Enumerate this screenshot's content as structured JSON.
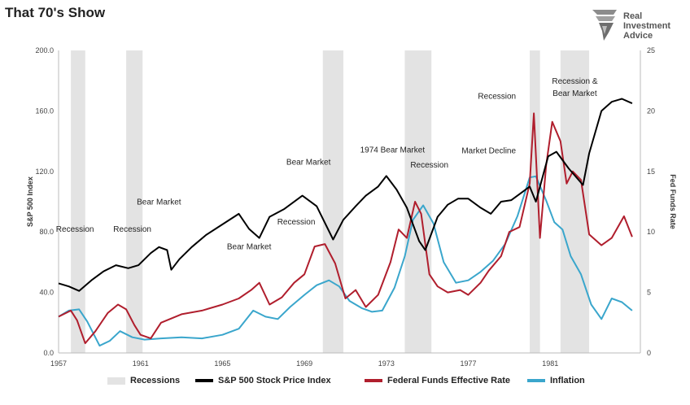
{
  "header": {
    "title": "That 70's Show"
  },
  "logo": {
    "lines": [
      "Real",
      "Investment",
      "Advice"
    ]
  },
  "colors": {
    "recession": "#e3e3e3",
    "sp500": "#000000",
    "fedfunds": "#b01e2d",
    "inflation": "#3aa6cc"
  },
  "chart_data": {
    "type": "line",
    "title": "That 70's Show",
    "xlim": [
      1957,
      1985.4
    ],
    "x_ticks": [
      "1957",
      "1961",
      "1965",
      "1969",
      "1973",
      "1977",
      "1981"
    ],
    "x_tick_values": [
      1957,
      1961,
      1965,
      1969,
      1973,
      1977,
      1981
    ],
    "ylabel_left": "S&P 500 Index",
    "ylim_left": [
      0,
      200
    ],
    "y_ticks_left": [
      "0.0",
      "40.0",
      "80.0",
      "120.0",
      "160.0",
      "200.0"
    ],
    "ylabel_right": "Fed Funds Rate",
    "ylim_right": [
      0,
      25
    ],
    "y_ticks_right": [
      "0",
      "5",
      "10",
      "15",
      "20",
      "25"
    ],
    "recessions": [
      [
        1957.6,
        1958.3
      ],
      [
        1960.3,
        1961.1
      ],
      [
        1969.9,
        1970.9
      ],
      [
        1973.9,
        1975.2
      ],
      [
        1980.0,
        1980.5
      ],
      [
        1981.5,
        1982.9
      ]
    ],
    "series": [
      {
        "name": "S&P 500 Stock Price Index",
        "axis": "left",
        "x": [
          1957.0,
          1957.5,
          1958.0,
          1958.6,
          1959.2,
          1959.8,
          1960.4,
          1960.9,
          1961.5,
          1961.9,
          1962.3,
          1962.5,
          1962.9,
          1963.5,
          1964.2,
          1965.0,
          1965.8,
          1966.3,
          1966.8,
          1967.3,
          1968.0,
          1968.9,
          1969.6,
          1970.4,
          1970.9,
          1971.5,
          1972.0,
          1972.6,
          1973.0,
          1973.5,
          1974.0,
          1974.6,
          1974.9,
          1975.5,
          1976.0,
          1976.5,
          1977.0,
          1977.6,
          1978.1,
          1978.6,
          1979.1,
          1979.6,
          1980.0,
          1980.3,
          1980.9,
          1981.3,
          1981.9,
          1982.6,
          1982.9,
          1983.5,
          1984.0,
          1984.5,
          1985.0
        ],
        "y": [
          46,
          44,
          41,
          48,
          54,
          58,
          56,
          58,
          66,
          70,
          68,
          55,
          62,
          70,
          78,
          85,
          92,
          82,
          76,
          90,
          95,
          104,
          97,
          75,
          88,
          97,
          104,
          110,
          117,
          108,
          96,
          74,
          68,
          90,
          98,
          102,
          102,
          96,
          92,
          100,
          101,
          106,
          110,
          100,
          130,
          133,
          122,
          111,
          132,
          160,
          166,
          168,
          165
        ]
      },
      {
        "name": "Federal Funds Effective Rate",
        "axis": "right",
        "x": [
          1957.0,
          1957.6,
          1957.9,
          1958.3,
          1958.8,
          1959.4,
          1959.9,
          1960.3,
          1960.7,
          1961.0,
          1961.5,
          1962.0,
          1963.0,
          1964.0,
          1965.0,
          1965.8,
          1966.4,
          1966.8,
          1967.3,
          1967.9,
          1968.5,
          1969.0,
          1969.5,
          1970.0,
          1970.5,
          1971.0,
          1971.5,
          1972.0,
          1972.6,
          1973.2,
          1973.6,
          1974.0,
          1974.4,
          1974.7,
          1975.1,
          1975.5,
          1976.0,
          1976.6,
          1977.0,
          1977.6,
          1978.0,
          1978.6,
          1979.0,
          1979.5,
          1980.0,
          1980.2,
          1980.5,
          1980.8,
          1981.1,
          1981.5,
          1981.8,
          1982.1,
          1982.5,
          1982.9,
          1983.5,
          1984.0,
          1984.6,
          1985.0
        ],
        "y": [
          3.0,
          3.5,
          2.7,
          0.8,
          1.8,
          3.3,
          4.0,
          3.6,
          2.3,
          1.5,
          1.2,
          2.5,
          3.2,
          3.5,
          4.0,
          4.5,
          5.2,
          5.8,
          4.0,
          4.6,
          5.8,
          6.5,
          8.8,
          9.0,
          7.4,
          4.5,
          5.2,
          3.8,
          4.8,
          7.5,
          10.2,
          9.5,
          12.5,
          11.5,
          6.5,
          5.5,
          5.0,
          5.2,
          4.8,
          5.8,
          6.8,
          8.0,
          10.0,
          10.4,
          14.0,
          19.8,
          9.5,
          15.5,
          19.1,
          17.5,
          14.0,
          15.0,
          14.3,
          9.8,
          8.9,
          9.5,
          11.3,
          9.6
        ]
      },
      {
        "name": "Inflation",
        "axis": "right",
        "x": [
          1957.0,
          1957.5,
          1958.0,
          1958.4,
          1959.0,
          1959.5,
          1960.0,
          1960.6,
          1961.2,
          1962.0,
          1963.0,
          1964.0,
          1965.0,
          1965.8,
          1966.5,
          1967.1,
          1967.7,
          1968.3,
          1969.0,
          1969.6,
          1970.2,
          1970.7,
          1971.2,
          1971.8,
          1972.3,
          1972.8,
          1973.4,
          1973.9,
          1974.3,
          1974.8,
          1975.3,
          1975.8,
          1976.4,
          1977.0,
          1977.6,
          1978.2,
          1978.8,
          1979.4,
          1980.0,
          1980.3,
          1980.8,
          1981.2,
          1981.6,
          1982.0,
          1982.5,
          1983.0,
          1983.5,
          1984.0,
          1984.5,
          1985.0
        ],
        "y": [
          3.0,
          3.5,
          3.6,
          2.6,
          0.6,
          1.0,
          1.8,
          1.3,
          1.1,
          1.2,
          1.3,
          1.2,
          1.5,
          2.0,
          3.5,
          3.0,
          2.8,
          3.8,
          4.8,
          5.6,
          6.0,
          5.5,
          4.3,
          3.7,
          3.4,
          3.5,
          5.4,
          8.0,
          11.0,
          12.2,
          10.7,
          7.5,
          5.8,
          6.0,
          6.7,
          7.6,
          9.0,
          11.3,
          14.5,
          14.6,
          12.6,
          10.8,
          10.2,
          8.0,
          6.5,
          4.0,
          2.8,
          4.5,
          4.2,
          3.5
        ]
      }
    ],
    "annotations": [
      {
        "text": "Recession",
        "x": 1957.8,
        "y": 80.0
      },
      {
        "text": "Recession",
        "x": 1960.6,
        "y": 80.0
      },
      {
        "text": "Bear Market",
        "x": 1961.9,
        "y": 98.0
      },
      {
        "text": "Bear Market",
        "x": 1966.3,
        "y": 68.5
      },
      {
        "text": "Recession",
        "x": 1968.6,
        "y": 85.0
      },
      {
        "text": "Bear Market",
        "x": 1969.2,
        "y": 124.5
      },
      {
        "text": "1974 Bear Market",
        "x": 1973.3,
        "y": 132.5
      },
      {
        "text": "Recession",
        "x": 1975.1,
        "y": 122.5
      },
      {
        "text": "Market Decline",
        "x": 1978.0,
        "y": 132.0
      },
      {
        "text": "Recession",
        "x": 1978.4,
        "y": 168.0
      },
      {
        "text": "Recession &",
        "x": 1982.2,
        "y": 178.0
      },
      {
        "text": "Bear Market",
        "x": 1982.2,
        "y": 170.0
      }
    ],
    "legend": {
      "position": "bottom",
      "entries": [
        "Recessions",
        "S&P 500 Stock Price Index",
        "Federal Funds Effective Rate",
        "Inflation"
      ]
    },
    "grid": false
  }
}
